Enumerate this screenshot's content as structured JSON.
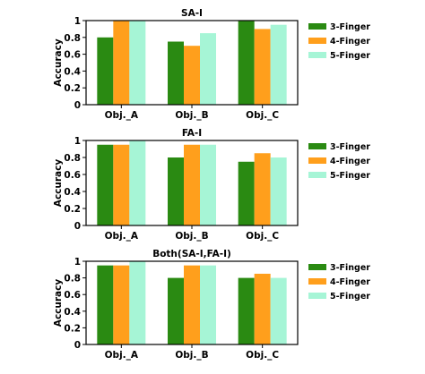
{
  "chart_data": [
    {
      "type": "bar",
      "title": "SA-I",
      "ylabel": "Accuracy",
      "xlabel": "",
      "ylim": [
        0,
        1
      ],
      "yticks": [
        "0",
        "0.2",
        "0.4",
        "0.6",
        "0.8",
        "1"
      ],
      "categories": [
        "Obj._A",
        "Obj._B",
        "Obj._C"
      ],
      "legend_position": "right",
      "series": [
        {
          "name": "3-Finger",
          "color": "#2a8a12",
          "values": [
            0.8,
            0.75,
            1.0
          ]
        },
        {
          "name": "4-Finger",
          "color": "#ff9f1c",
          "values": [
            1.0,
            0.7,
            0.9
          ]
        },
        {
          "name": "5-Finger",
          "color": "#a6f5d6",
          "values": [
            1.0,
            0.85,
            0.95
          ]
        }
      ]
    },
    {
      "type": "bar",
      "title": "FA-I",
      "ylabel": "Accuracy",
      "xlabel": "",
      "ylim": [
        0,
        1
      ],
      "yticks": [
        "0",
        "0.2",
        "0.4",
        "0.6",
        "0.8",
        "1"
      ],
      "categories": [
        "Obj._A",
        "Obj._B",
        "Obj._C"
      ],
      "legend_position": "right",
      "series": [
        {
          "name": "3-Finger",
          "color": "#2a8a12",
          "values": [
            0.95,
            0.8,
            0.75
          ]
        },
        {
          "name": "4-Finger",
          "color": "#ff9f1c",
          "values": [
            0.95,
            0.95,
            0.85
          ]
        },
        {
          "name": "5-Finger",
          "color": "#a6f5d6",
          "values": [
            1.0,
            0.95,
            0.8
          ]
        }
      ]
    },
    {
      "type": "bar",
      "title": "Both(SA-I,FA-I)",
      "ylabel": "Accuracy",
      "xlabel": "",
      "ylim": [
        0,
        1
      ],
      "yticks": [
        "0",
        "0.2",
        "0.4",
        "0.6",
        "0.8",
        "1"
      ],
      "categories": [
        "Obj._A",
        "Obj._B",
        "Obj._C"
      ],
      "legend_position": "right",
      "series": [
        {
          "name": "3-Finger",
          "color": "#2a8a12",
          "values": [
            0.95,
            0.8,
            0.8
          ]
        },
        {
          "name": "4-Finger",
          "color": "#ff9f1c",
          "values": [
            0.95,
            0.95,
            0.85
          ]
        },
        {
          "name": "5-Finger",
          "color": "#a6f5d6",
          "values": [
            1.0,
            0.95,
            0.8
          ]
        }
      ]
    }
  ]
}
